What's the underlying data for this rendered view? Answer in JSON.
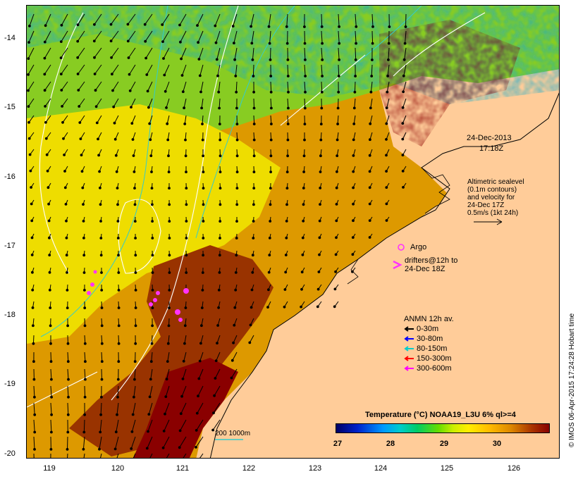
{
  "map": {
    "date_label": "24-Dec-2013",
    "time_label": "17:18Z",
    "altimetry_note": [
      "Altimetric sealevel",
      "(0.1m contours)",
      "and velocity for",
      "24-Dec 17Z",
      "0.5m/s (1kt 24h)"
    ],
    "argo_label": "Argo",
    "drifters_label": [
      "drifters@12h to",
      "24-Dec 18Z"
    ],
    "depth_scale_label": "200  1000m",
    "credit": "© IMOS 06-Apr-2015 17:24:28 Hobart time",
    "colors": {
      "land": "#ffcc99",
      "coast": "#000000",
      "contour": "#ffffff",
      "isobath": "#33cccc",
      "argo": "#ff33ff"
    }
  },
  "axes": {
    "x_ticks": [
      "119",
      "120",
      "121",
      "122",
      "123",
      "124",
      "125",
      "126"
    ],
    "y_ticks": [
      "-14",
      "-15",
      "-16",
      "-17",
      "-18",
      "-19",
      "-20"
    ]
  },
  "anmn_legend": {
    "title": "ANMN 12h av.",
    "items": [
      {
        "label": "0-30m",
        "color": "#000000"
      },
      {
        "label": "30-80m",
        "color": "#0000ff"
      },
      {
        "label": "80-150m",
        "color": "#00cccc"
      },
      {
        "label": "150-300m",
        "color": "#ff0000"
      },
      {
        "label": "300-600m",
        "color": "#ff00ff"
      }
    ]
  },
  "colorbar": {
    "title": "Temperature (°C) NOAA19_L3U 6% ql>=4",
    "ticks": [
      "27",
      "28",
      "29",
      "30"
    ]
  }
}
